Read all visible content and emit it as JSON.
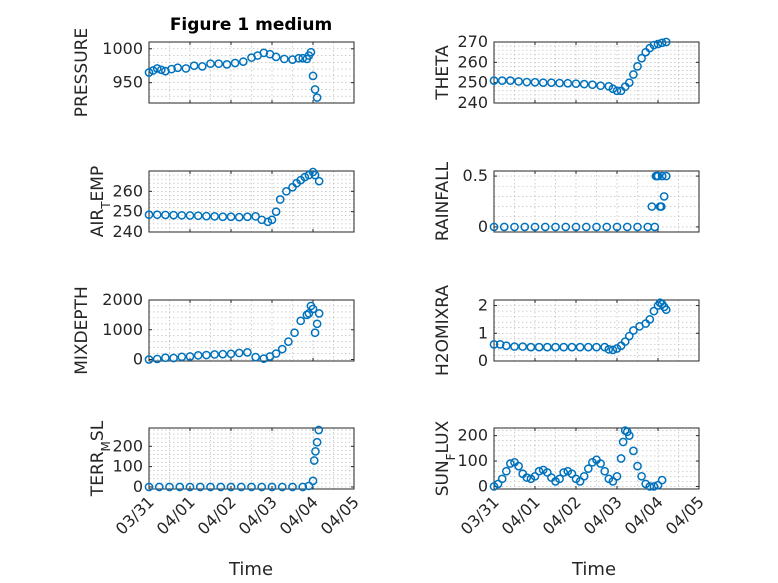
{
  "figure": {
    "title": "Figure 1 medium",
    "marker_color": "#0072BD",
    "x_axis_label": "Time",
    "x_ticks": [
      "03/31",
      "04/01",
      "04/02",
      "04/03",
      "04/04",
      "04/05"
    ]
  },
  "chart_data": [
    {
      "type": "scatter",
      "id": "pressure",
      "ylabel": "PRESSURE",
      "ylabel_sub": "",
      "ylim": [
        920,
        1010
      ],
      "yticks": [
        950,
        1000
      ],
      "xlim": [
        0,
        5
      ],
      "grid": true,
      "x": [
        0.0,
        0.1,
        0.2,
        0.3,
        0.4,
        0.55,
        0.7,
        0.9,
        1.1,
        1.3,
        1.5,
        1.7,
        1.9,
        2.1,
        2.3,
        2.5,
        2.65,
        2.8,
        2.95,
        3.1,
        3.3,
        3.5,
        3.65,
        3.75,
        3.85,
        3.9,
        3.95,
        4.0,
        4.05,
        4.1
      ],
      "y": [
        965,
        968,
        971,
        969,
        967,
        970,
        972,
        971,
        975,
        974,
        978,
        978,
        977,
        979,
        981,
        987,
        990,
        994,
        992,
        988,
        985,
        984,
        986,
        986,
        985,
        990,
        995,
        960,
        940,
        928
      ]
    },
    {
      "type": "scatter",
      "id": "theta",
      "ylabel": "THETA",
      "ylabel_sub": "",
      "ylim": [
        240,
        270
      ],
      "yticks": [
        240,
        250,
        260,
        270
      ],
      "xlim": [
        0,
        5
      ],
      "grid": true,
      "x": [
        0.0,
        0.2,
        0.4,
        0.6,
        0.8,
        1.0,
        1.2,
        1.4,
        1.6,
        1.8,
        2.0,
        2.2,
        2.4,
        2.6,
        2.8,
        2.9,
        3.0,
        3.1,
        3.2,
        3.3,
        3.4,
        3.5,
        3.6,
        3.7,
        3.8,
        3.9,
        4.0,
        4.1,
        4.2
      ],
      "y": [
        251,
        251,
        251,
        250.6,
        250.3,
        250.2,
        250,
        250,
        249.8,
        249.7,
        249.5,
        249.3,
        249,
        248.5,
        248.2,
        247,
        246,
        246,
        248,
        250,
        254,
        258,
        262,
        265,
        267,
        268.5,
        269,
        269.6,
        270
      ]
    },
    {
      "type": "scatter",
      "id": "air_temp",
      "ylabel": "AIR",
      "ylabel_sub": "T",
      "ylabel_suffix": "EMP",
      "ylim": [
        240,
        270
      ],
      "yticks": [
        240,
        250,
        260
      ],
      "xlim": [
        0,
        5
      ],
      "grid": true,
      "x": [
        0.0,
        0.2,
        0.4,
        0.6,
        0.8,
        1.0,
        1.2,
        1.4,
        1.6,
        1.8,
        2.0,
        2.2,
        2.4,
        2.6,
        2.75,
        2.9,
        3.0,
        3.1,
        3.2,
        3.35,
        3.5,
        3.6,
        3.7,
        3.8,
        3.9,
        4.0,
        4.05,
        4.15
      ],
      "y": [
        248.5,
        248.5,
        248.4,
        248.3,
        248.2,
        248.1,
        248,
        247.8,
        247.7,
        247.5,
        247.5,
        247.3,
        247.5,
        247.7,
        246,
        245,
        246,
        250,
        256,
        260,
        262,
        264,
        265.5,
        267,
        268,
        269.5,
        268,
        265
      ]
    },
    {
      "type": "scatter",
      "id": "rainfall",
      "ylabel": "RAINFALL",
      "ylabel_sub": "",
      "ylim": [
        -0.05,
        0.55
      ],
      "yticks": [
        0,
        0.5
      ],
      "xlim": [
        0,
        5
      ],
      "grid": true,
      "x": [
        0.0,
        0.25,
        0.5,
        0.75,
        1.0,
        1.25,
        1.5,
        1.75,
        2.0,
        2.25,
        2.5,
        2.75,
        3.0,
        3.25,
        3.5,
        3.75,
        3.85,
        3.92,
        3.95,
        4.0,
        4.05,
        4.1,
        4.15,
        4.2,
        3.98,
        4.08
      ],
      "y": [
        0,
        0,
        0,
        0,
        0,
        0,
        0,
        0,
        0,
        0,
        0,
        0,
        0,
        0,
        0,
        0,
        0.2,
        0,
        0.5,
        0.5,
        0.2,
        0.5,
        0.3,
        0.5,
        0.5,
        0.2
      ]
    },
    {
      "type": "scatter",
      "id": "mixdepth",
      "ylabel": "MIXDEPTH",
      "ylabel_sub": "",
      "ylim": [
        -50,
        2000
      ],
      "yticks": [
        0,
        1000,
        2000
      ],
      "xlim": [
        0,
        5
      ],
      "grid": true,
      "x": [
        0.0,
        0.2,
        0.4,
        0.6,
        0.8,
        1.0,
        1.2,
        1.4,
        1.6,
        1.8,
        2.0,
        2.2,
        2.4,
        2.6,
        2.8,
        2.95,
        3.1,
        3.25,
        3.4,
        3.55,
        3.7,
        3.85,
        3.9,
        3.95,
        4.0,
        4.05,
        4.1,
        4.15
      ],
      "y": [
        0,
        20,
        60,
        50,
        90,
        100,
        140,
        150,
        170,
        180,
        190,
        220,
        240,
        80,
        30,
        100,
        200,
        350,
        600,
        900,
        1300,
        1500,
        1550,
        1800,
        1700,
        900,
        1200,
        1550
      ]
    },
    {
      "type": "scatter",
      "id": "h2omixra",
      "ylabel": "H2OMIXRA",
      "ylabel_sub": "",
      "ylim": [
        0,
        2.2
      ],
      "yticks": [
        0,
        1,
        2
      ],
      "xlim": [
        0,
        5
      ],
      "grid": true,
      "x": [
        0.0,
        0.15,
        0.3,
        0.5,
        0.7,
        0.9,
        1.1,
        1.3,
        1.5,
        1.7,
        1.9,
        2.1,
        2.3,
        2.5,
        2.7,
        2.8,
        2.9,
        3.0,
        3.1,
        3.2,
        3.3,
        3.4,
        3.55,
        3.7,
        3.8,
        3.9,
        4.0,
        4.05,
        4.1,
        4.15,
        4.2
      ],
      "y": [
        0.6,
        0.6,
        0.55,
        0.52,
        0.52,
        0.5,
        0.5,
        0.5,
        0.5,
        0.5,
        0.5,
        0.5,
        0.5,
        0.5,
        0.5,
        0.42,
        0.4,
        0.45,
        0.55,
        0.7,
        0.9,
        1.1,
        1.25,
        1.35,
        1.5,
        1.8,
        2.0,
        2.1,
        2.05,
        1.95,
        1.85
      ]
    },
    {
      "type": "scatter",
      "id": "terr_msl",
      "ylabel": "TERR",
      "ylabel_sub": "M",
      "ylabel_suffix": "SL",
      "ylim": [
        -10,
        290
      ],
      "yticks": [
        0,
        100,
        200
      ],
      "xlim": [
        0,
        5
      ],
      "grid": true,
      "x": [
        0.0,
        0.25,
        0.5,
        0.75,
        1.0,
        1.25,
        1.5,
        1.75,
        2.0,
        2.25,
        2.5,
        2.75,
        3.0,
        3.25,
        3.5,
        3.75,
        3.9,
        4.0,
        4.03,
        4.06,
        4.1,
        4.14
      ],
      "y": [
        0,
        0,
        0,
        0,
        0,
        0,
        0,
        0,
        0,
        0,
        0,
        0,
        0,
        0,
        0,
        0,
        5,
        30,
        130,
        175,
        220,
        280
      ]
    },
    {
      "type": "scatter",
      "id": "sun_flux",
      "ylabel": "SUN",
      "ylabel_sub": "F",
      "ylabel_suffix": "LUX",
      "ylim": [
        -10,
        230
      ],
      "yticks": [
        0,
        100,
        200
      ],
      "xlim": [
        0,
        5
      ],
      "grid": true,
      "x": [
        0.0,
        0.1,
        0.2,
        0.3,
        0.4,
        0.5,
        0.6,
        0.7,
        0.8,
        0.9,
        1.0,
        1.1,
        1.2,
        1.3,
        1.4,
        1.5,
        1.6,
        1.7,
        1.8,
        1.9,
        2.0,
        2.1,
        2.2,
        2.3,
        2.4,
        2.5,
        2.6,
        2.7,
        2.8,
        2.9,
        3.0,
        3.1,
        3.15,
        3.2,
        3.25,
        3.3,
        3.4,
        3.5,
        3.6,
        3.7,
        3.8,
        3.9,
        4.0,
        4.1
      ],
      "y": [
        0,
        10,
        30,
        60,
        90,
        95,
        80,
        50,
        35,
        30,
        40,
        60,
        65,
        55,
        35,
        20,
        30,
        55,
        60,
        50,
        30,
        20,
        40,
        70,
        95,
        105,
        90,
        60,
        30,
        20,
        40,
        110,
        175,
        220,
        215,
        200,
        140,
        80,
        40,
        10,
        0,
        0,
        5,
        25
      ]
    }
  ]
}
